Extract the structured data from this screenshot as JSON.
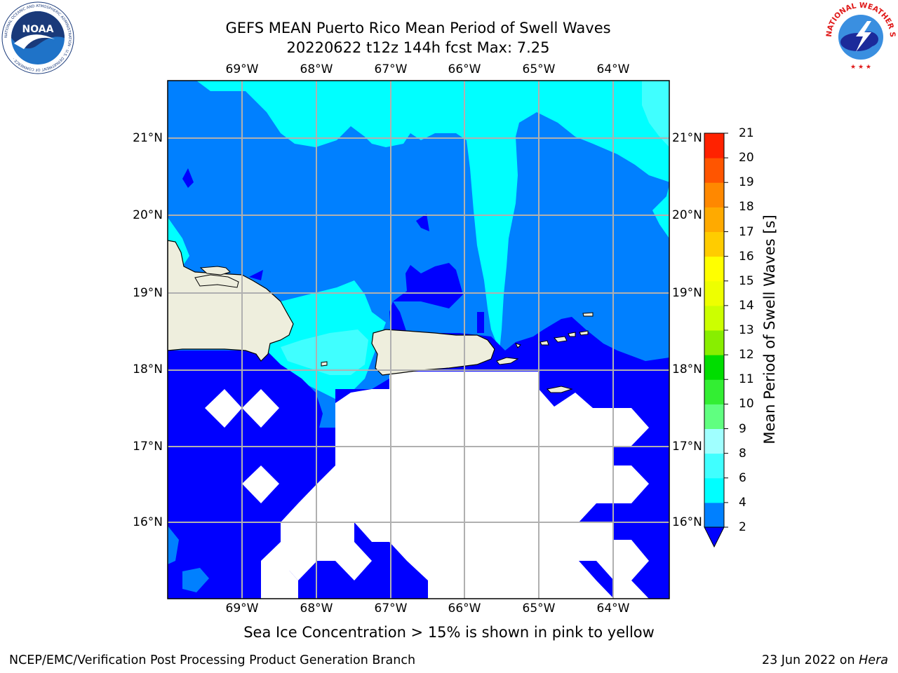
{
  "title": {
    "line1": "GEFS MEAN Puerto Rico Mean Period of Swell Waves",
    "line2": "20220622 t12z 144h fcst   Max: 7.25"
  },
  "map": {
    "lon_labels": [
      "69°W",
      "68°W",
      "67°W",
      "66°W",
      "65°W",
      "64°W"
    ],
    "lat_labels": [
      "21°N",
      "20°N",
      "19°N",
      "18°N",
      "17°N",
      "16°N"
    ],
    "land_color": "#eeeedd",
    "no_data_color": "#ffffff",
    "grid_color": "#b0b0b0"
  },
  "colorbar": {
    "label": "Mean Period of Swell Waves [s]",
    "ticks": [
      "2",
      "4",
      "6",
      "8",
      "9",
      "10",
      "11",
      "12",
      "13",
      "14",
      "15",
      "16",
      "17",
      "18",
      "19",
      "20",
      "21"
    ],
    "colors": [
      "#0000ff",
      "#0080ff",
      "#00ffff",
      "#40ffff",
      "#a0ffff",
      "#60ff80",
      "#33ee33",
      "#00dd00",
      "#88ee00",
      "#ccff00",
      "#eeff00",
      "#ffff00",
      "#ffcc00",
      "#ffaa00",
      "#ff8800",
      "#ff5500",
      "#ff2200",
      "#ff0000"
    ]
  },
  "ice_note": "Sea Ice Concentration > 15% is shown in pink to yellow",
  "footer": {
    "left": "NCEP/EMC/Verification Post Processing Product Generation Branch",
    "right_prefix": "23 Jun 2022 on ",
    "right_host": "Hera"
  },
  "logos": {
    "noaa_text": "NOAA",
    "noaa_ring": "NATIONAL OCEANIC AND ATMOSPHERIC ADMINISTRATION · U.S. DEPARTMENT OF COMMERCE ·",
    "nws_ring": "NATIONAL WEATHER SERVICE"
  }
}
